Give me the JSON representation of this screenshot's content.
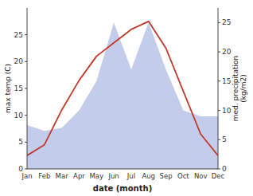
{
  "chart_data": {
    "type": "line",
    "xlabel": "date (month)",
    "ylabel": "max temp (C)",
    "y2label": "med. precipitation\n(kg/m2)",
    "categories": [
      "Jan",
      "Feb",
      "Mar",
      "Apr",
      "May",
      "Jun",
      "Jul",
      "Aug",
      "Sep",
      "Oct",
      "Nov",
      "Dec"
    ],
    "series": [
      {
        "type": "area",
        "axis": "y2",
        "color": "#b8c4e8",
        "values": [
          7.5,
          6.5,
          7.0,
          10.0,
          15.0,
          25.0,
          17.0,
          25.0,
          17.0,
          10.0,
          9.0,
          9.0
        ]
      },
      {
        "type": "line",
        "color": "#c0392b",
        "values": [
          2.5,
          4.5,
          11.0,
          16.5,
          21.0,
          23.5,
          26.0,
          27.5,
          22.5,
          14.5,
          6.5,
          2.5
        ]
      }
    ],
    "ylim": [
      0,
      30
    ],
    "yticks": [
      0,
      5,
      10,
      15,
      20,
      25
    ],
    "y2lim": [
      0,
      27.5
    ],
    "y2ticks": [
      0,
      5,
      10,
      15,
      20,
      25
    ],
    "grid": false
  }
}
